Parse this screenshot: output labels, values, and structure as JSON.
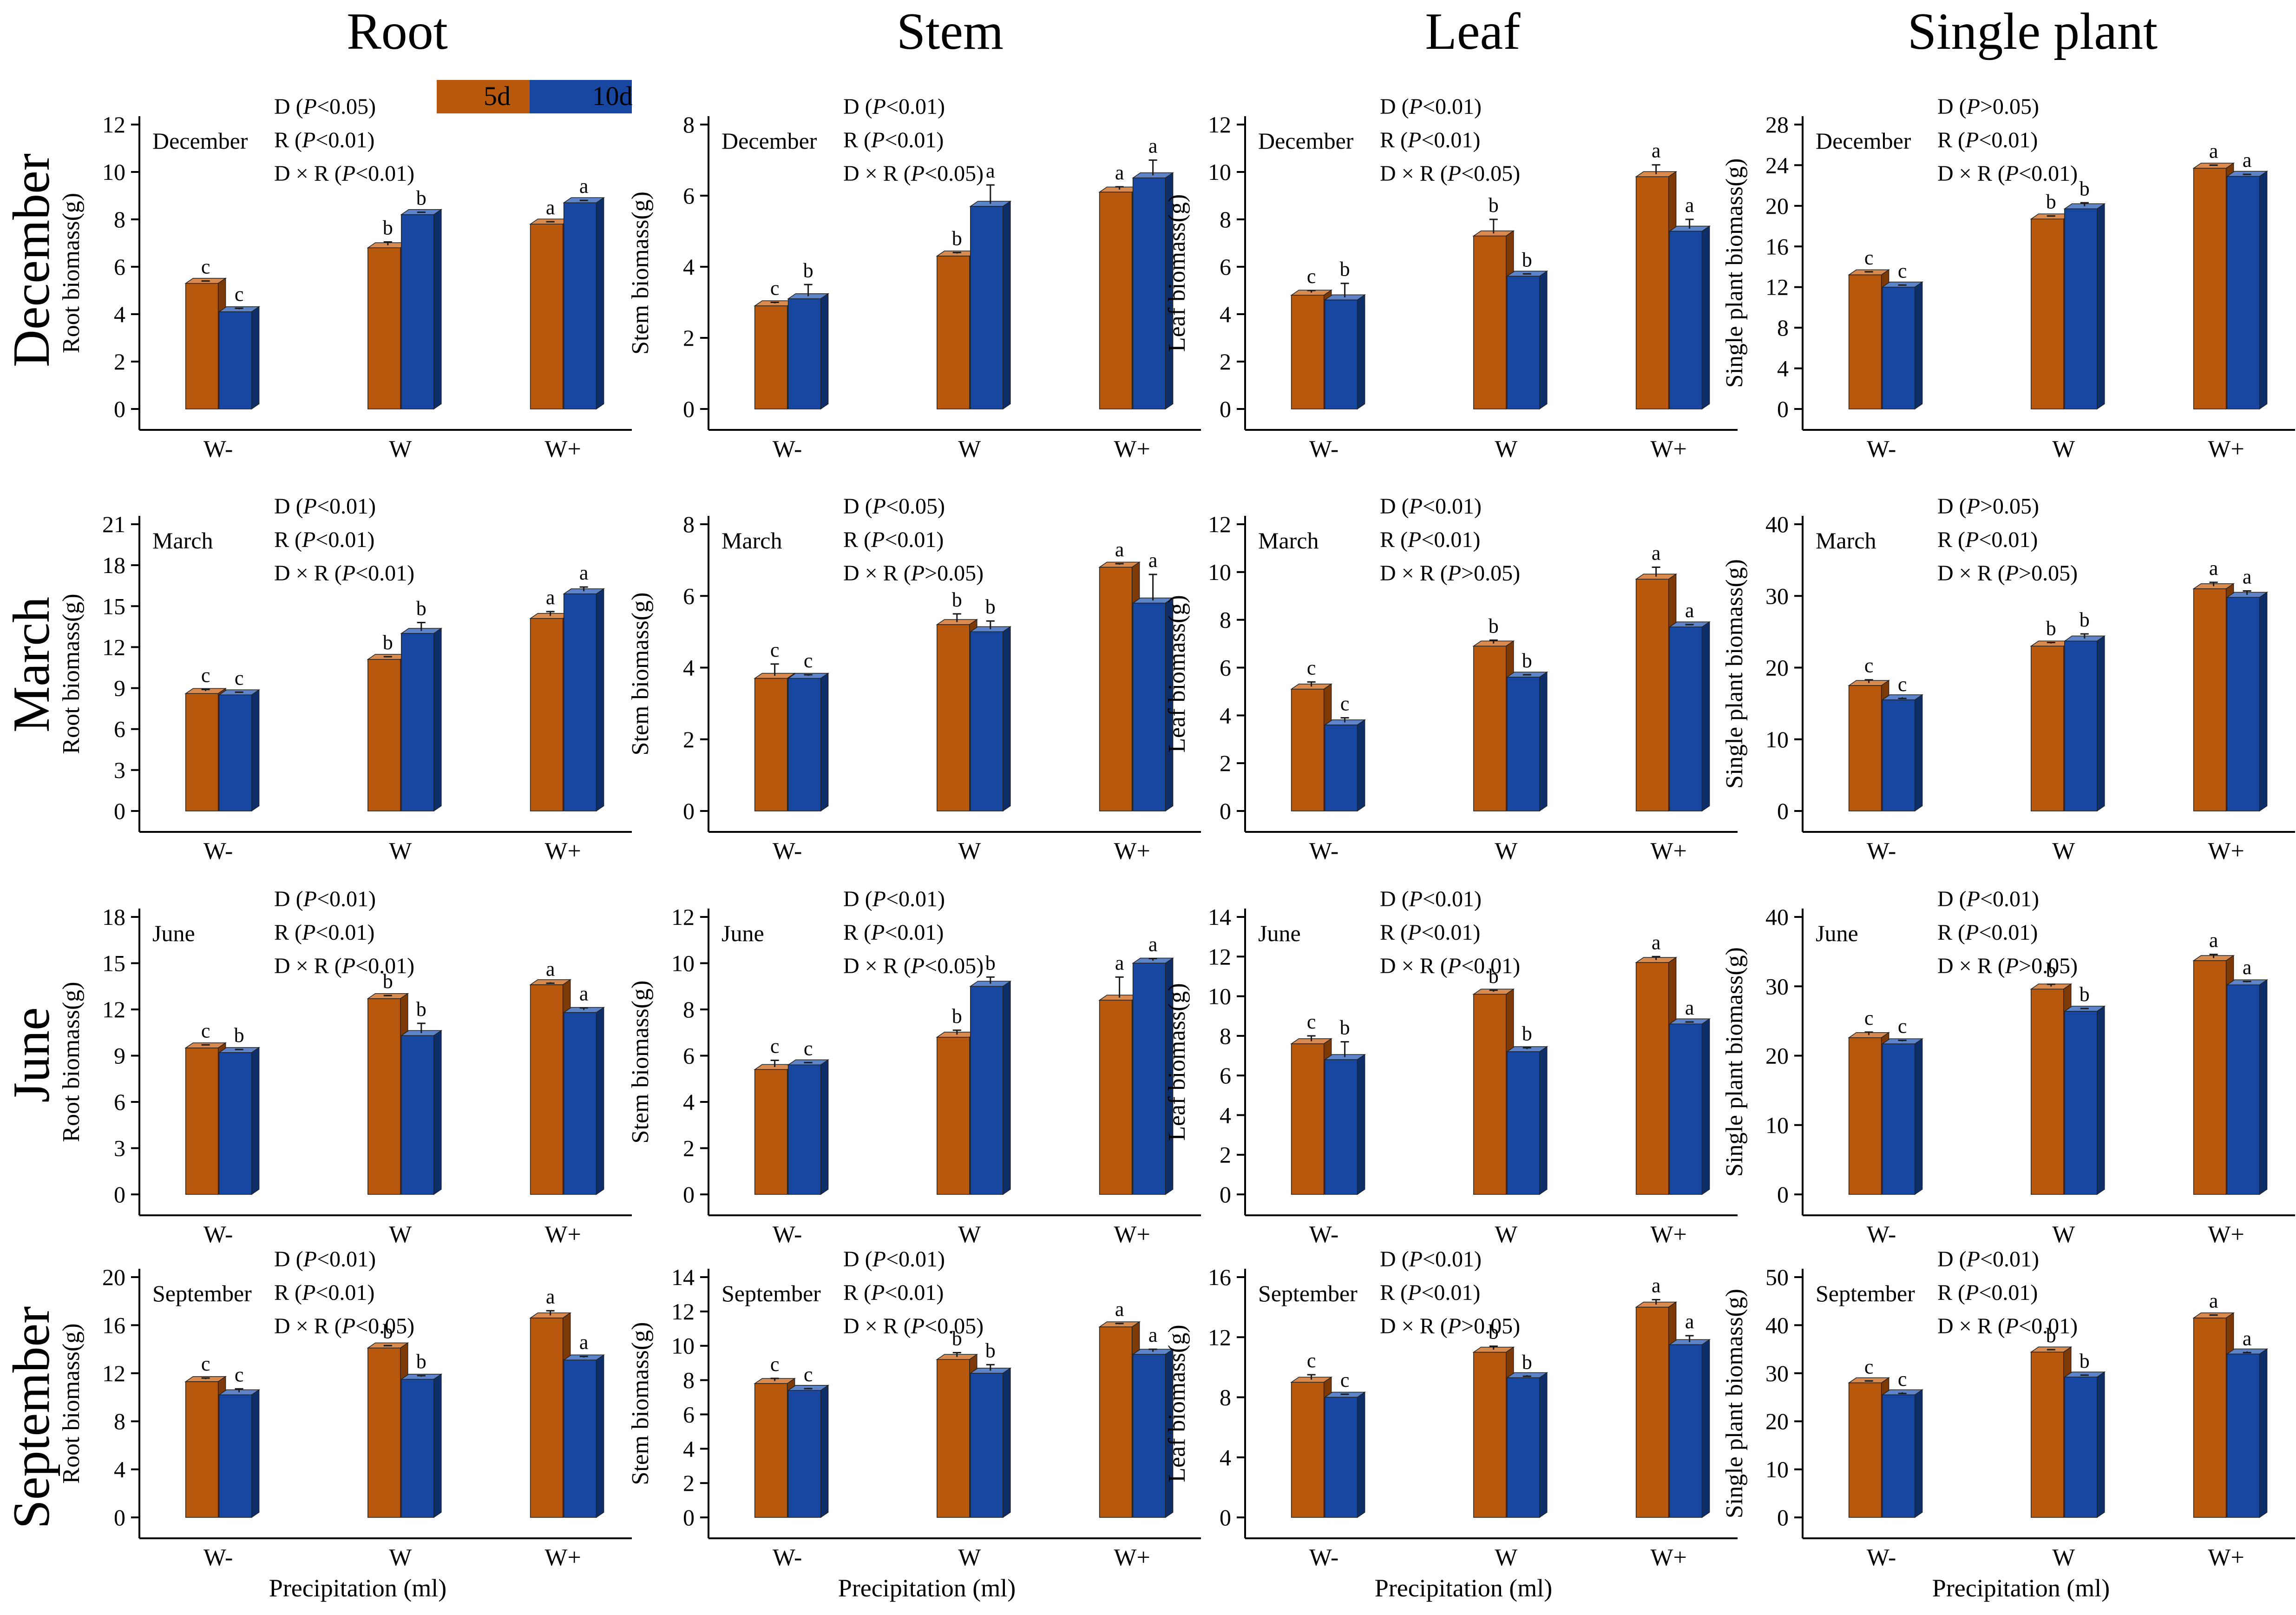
{
  "legend": [
    {
      "label": "5d",
      "color": "#B8580C"
    },
    {
      "label": "10d",
      "color": "#1747A0"
    }
  ],
  "colors": {
    "front5": "#B8580C",
    "top5": "#D98A4E",
    "side5": "#7E3A06",
    "front10": "#1747A0",
    "top10": "#5D84C8",
    "side10": "#0E2E6A",
    "errorbar": "#1a1a1a",
    "axis": "#000000"
  },
  "columns": [
    "Root",
    "Stem",
    "Leaf",
    "Single plant"
  ],
  "rows": [
    "December",
    "March",
    "June",
    "September"
  ],
  "xlabel": "Precipitation (ml)",
  "chart_data": [
    {
      "type": "bar",
      "title": "December",
      "ylabel": "Root biomass(g)",
      "ylim": [
        0,
        12
      ],
      "ticks": [
        0,
        2,
        4,
        6,
        8,
        10,
        12
      ],
      "categories": [
        "W-",
        "W",
        "W+"
      ],
      "series": [
        {
          "name": "5d",
          "values": [
            5.3,
            6.8,
            7.8
          ],
          "errors": [
            0.1,
            0.25,
            0.1
          ],
          "letters": [
            "c",
            "b",
            "a"
          ]
        },
        {
          "name": "10d",
          "values": [
            4.1,
            8.2,
            8.7
          ],
          "errors": [
            0.15,
            0.1,
            0.1
          ],
          "letters": [
            "c",
            "b",
            "a"
          ]
        }
      ],
      "stats": [
        "D (P<0.05)",
        "R (P<0.01)",
        "D × R (P<0.01)"
      ]
    },
    {
      "type": "bar",
      "title": "December",
      "ylabel": "Stem biomass(g)",
      "ylim": [
        0,
        8
      ],
      "ticks": [
        0,
        2,
        4,
        6,
        8
      ],
      "categories": [
        "W-",
        "W",
        "W+"
      ],
      "series": [
        {
          "name": "5d",
          "values": [
            2.9,
            4.3,
            6.1
          ],
          "errors": [
            0.1,
            0.1,
            0.15
          ],
          "letters": [
            "c",
            "b",
            "a"
          ]
        },
        {
          "name": "10d",
          "values": [
            3.1,
            5.7,
            6.5
          ],
          "errors": [
            0.4,
            0.6,
            0.5
          ],
          "letters": [
            "b",
            "a",
            "a"
          ]
        }
      ],
      "stats": [
        "D (P<0.01)",
        "R (P<0.01)",
        "D × R (P<0.05)"
      ]
    },
    {
      "type": "bar",
      "title": "December",
      "ylabel": "Leaf biomass(g)",
      "ylim": [
        0,
        12
      ],
      "ticks": [
        0,
        2,
        4,
        6,
        8,
        10,
        12
      ],
      "categories": [
        "W-",
        "W",
        "W+"
      ],
      "series": [
        {
          "name": "5d",
          "values": [
            4.8,
            7.3,
            9.8
          ],
          "errors": [
            0.2,
            0.7,
            0.5
          ],
          "letters": [
            "c",
            "b",
            "a"
          ]
        },
        {
          "name": "10d",
          "values": [
            4.6,
            5.6,
            7.5
          ],
          "errors": [
            0.7,
            0.1,
            0.5
          ],
          "letters": [
            "b",
            "b",
            "a"
          ]
        }
      ],
      "stats": [
        "D (P<0.01)",
        "R (P<0.01)",
        "D × R (P<0.05)"
      ]
    },
    {
      "type": "bar",
      "title": "December",
      "ylabel": "Single plant biomass(g)",
      "ylim": [
        0,
        28
      ],
      "ticks": [
        0,
        4,
        8,
        12,
        16,
        20,
        24,
        28
      ],
      "categories": [
        "W-",
        "W",
        "W+"
      ],
      "series": [
        {
          "name": "5d",
          "values": [
            13.2,
            18.7,
            23.7
          ],
          "errors": [
            0.3,
            0.3,
            0.3
          ],
          "letters": [
            "c",
            "b",
            "a"
          ]
        },
        {
          "name": "10d",
          "values": [
            12.0,
            19.7,
            22.9
          ],
          "errors": [
            0.2,
            0.6,
            0.2
          ],
          "letters": [
            "c",
            "b",
            "a"
          ]
        }
      ],
      "stats": [
        "D (P>0.05)",
        "R (P<0.01)",
        "D × R (P<0.01)"
      ]
    },
    {
      "type": "bar",
      "title": "March",
      "ylabel": "Root biomass(g)",
      "ylim": [
        0,
        21
      ],
      "ticks": [
        0,
        3,
        6,
        9,
        12,
        15,
        18,
        21
      ],
      "categories": [
        "W-",
        "W",
        "W+"
      ],
      "series": [
        {
          "name": "5d",
          "values": [
            8.6,
            11.1,
            14.1
          ],
          "errors": [
            0.3,
            0.2,
            0.5
          ],
          "letters": [
            "c",
            "b",
            "a"
          ]
        },
        {
          "name": "10d",
          "values": [
            8.5,
            13.0,
            15.9
          ],
          "errors": [
            0.2,
            0.8,
            0.5
          ],
          "letters": [
            "c",
            "b",
            "a"
          ]
        }
      ],
      "stats": [
        "D (P<0.01)",
        "R (P<0.01)",
        "D × R (P<0.01)"
      ]
    },
    {
      "type": "bar",
      "title": "March",
      "ylabel": "Stem biomass(g)",
      "ylim": [
        0,
        8
      ],
      "ticks": [
        0,
        2,
        4,
        6,
        8
      ],
      "categories": [
        "W-",
        "W",
        "W+"
      ],
      "series": [
        {
          "name": "5d",
          "values": [
            3.7,
            5.2,
            6.8
          ],
          "errors": [
            0.4,
            0.3,
            0.1
          ],
          "letters": [
            "c",
            "b",
            "a"
          ]
        },
        {
          "name": "10d",
          "values": [
            3.7,
            5.0,
            5.8
          ],
          "errors": [
            0.1,
            0.3,
            0.8
          ],
          "letters": [
            "c",
            "b",
            "a"
          ]
        }
      ],
      "stats": [
        "D (P<0.05)",
        "R (P<0.01)",
        "D × R (P>0.05)"
      ]
    },
    {
      "type": "bar",
      "title": "March",
      "ylabel": "Leaf biomass(g)",
      "ylim": [
        0,
        12
      ],
      "ticks": [
        0,
        2,
        4,
        6,
        8,
        10,
        12
      ],
      "categories": [
        "W-",
        "W",
        "W+"
      ],
      "series": [
        {
          "name": "5d",
          "values": [
            5.1,
            6.9,
            9.7
          ],
          "errors": [
            0.3,
            0.25,
            0.5
          ],
          "letters": [
            "c",
            "b",
            "a"
          ]
        },
        {
          "name": "10d",
          "values": [
            3.6,
            5.6,
            7.7
          ],
          "errors": [
            0.3,
            0.1,
            0.1
          ],
          "letters": [
            "c",
            "b",
            "a"
          ]
        }
      ],
      "stats": [
        "D (P<0.01)",
        "R (P<0.01)",
        "D × R (P>0.05)"
      ]
    },
    {
      "type": "bar",
      "title": "March",
      "ylabel": "Single plant biomass(g)",
      "ylim": [
        0,
        40
      ],
      "ticks": [
        0,
        10,
        20,
        30,
        40
      ],
      "categories": [
        "W-",
        "W",
        "W+"
      ],
      "series": [
        {
          "name": "5d",
          "values": [
            17.5,
            23.0,
            31.0
          ],
          "errors": [
            0.8,
            0.5,
            0.9
          ],
          "letters": [
            "c",
            "b",
            "a"
          ]
        },
        {
          "name": "10d",
          "values": [
            15.5,
            23.7,
            29.8
          ],
          "errors": [
            0.2,
            1.0,
            0.9
          ],
          "letters": [
            "c",
            "b",
            "a"
          ]
        }
      ],
      "stats": [
        "D (P>0.05)",
        "R (P<0.01)",
        "D × R (P>0.05)"
      ]
    },
    {
      "type": "bar",
      "title": "June",
      "ylabel": "Root biomass(g)",
      "ylim": [
        0,
        18
      ],
      "ticks": [
        0,
        3,
        6,
        9,
        12,
        15,
        18
      ],
      "categories": [
        "W-",
        "W",
        "W+"
      ],
      "series": [
        {
          "name": "5d",
          "values": [
            9.5,
            12.7,
            13.6
          ],
          "errors": [
            0.2,
            0.2,
            0.1
          ],
          "letters": [
            "c",
            "b",
            "a"
          ]
        },
        {
          "name": "10d",
          "values": [
            9.2,
            10.3,
            11.8
          ],
          "errors": [
            0.2,
            0.8,
            0.3
          ],
          "letters": [
            "b",
            "b",
            "a"
          ]
        }
      ],
      "stats": [
        "D (P<0.01)",
        "R (P<0.01)",
        "D × R (P<0.01)"
      ]
    },
    {
      "type": "bar",
      "title": "June",
      "ylabel": "Stem biomass(g)",
      "ylim": [
        0,
        12
      ],
      "ticks": [
        0,
        2,
        4,
        6,
        8,
        10,
        12
      ],
      "categories": [
        "W-",
        "W",
        "W+"
      ],
      "series": [
        {
          "name": "5d",
          "values": [
            5.4,
            6.8,
            8.4
          ],
          "errors": [
            0.4,
            0.3,
            1.0
          ],
          "letters": [
            "c",
            "b",
            "a"
          ]
        },
        {
          "name": "10d",
          "values": [
            5.6,
            9.0,
            10.0
          ],
          "errors": [
            0.1,
            0.4,
            0.2
          ],
          "letters": [
            "c",
            "b",
            "a"
          ]
        }
      ],
      "stats": [
        "D (P<0.01)",
        "R (P<0.01)",
        "D × R (P<0.05)"
      ]
    },
    {
      "type": "bar",
      "title": "June",
      "ylabel": "Leaf biomass(g)",
      "ylim": [
        0,
        14
      ],
      "ticks": [
        0,
        2,
        4,
        6,
        8,
        10,
        12,
        14
      ],
      "categories": [
        "W-",
        "W",
        "W+"
      ],
      "series": [
        {
          "name": "5d",
          "values": [
            7.6,
            10.1,
            11.7
          ],
          "errors": [
            0.4,
            0.2,
            0.3
          ],
          "letters": [
            "c",
            "b",
            "a"
          ]
        },
        {
          "name": "10d",
          "values": [
            6.8,
            7.2,
            8.6
          ],
          "errors": [
            0.9,
            0.2,
            0.1
          ],
          "letters": [
            "b",
            "b",
            "a"
          ]
        }
      ],
      "stats": [
        "D (P<0.01)",
        "R (P<0.01)",
        "D × R (P<0.01)"
      ]
    },
    {
      "type": "bar",
      "title": "June",
      "ylabel": "Single plant biomass(g)",
      "ylim": [
        0,
        40
      ],
      "ticks": [
        0,
        10,
        20,
        30,
        40
      ],
      "categories": [
        "W-",
        "W",
        "W+"
      ],
      "series": [
        {
          "name": "5d",
          "values": [
            22.6,
            29.6,
            33.7
          ],
          "errors": [
            0.8,
            0.7,
            0.9
          ],
          "letters": [
            "c",
            "b",
            "a"
          ]
        },
        {
          "name": "10d",
          "values": [
            21.7,
            26.4,
            30.2
          ],
          "errors": [
            0.5,
            0.4,
            0.5
          ],
          "letters": [
            "c",
            "b",
            "a"
          ]
        }
      ],
      "stats": [
        "D (P<0.01)",
        "R (P<0.01)",
        "D × R (P>0.05)"
      ]
    },
    {
      "type": "bar",
      "title": "September",
      "ylabel": "Root biomass(g)",
      "ylim": [
        0,
        20
      ],
      "ticks": [
        0,
        4,
        8,
        12,
        16,
        20
      ],
      "categories": [
        "W-",
        "W",
        "W+"
      ],
      "series": [
        {
          "name": "5d",
          "values": [
            11.3,
            14.1,
            16.6
          ],
          "errors": [
            0.3,
            0.2,
            0.6
          ],
          "letters": [
            "c",
            "b",
            "a"
          ]
        },
        {
          "name": "10d",
          "values": [
            10.2,
            11.5,
            13.1
          ],
          "errors": [
            0.5,
            0.3,
            0.3
          ],
          "letters": [
            "c",
            "b",
            "a"
          ]
        }
      ],
      "stats": [
        "D (P<0.01)",
        "R (P<0.01)",
        "D × R (P<0.05)"
      ]
    },
    {
      "type": "bar",
      "title": "September",
      "ylabel": "Stem biomass(g)",
      "ylim": [
        0,
        14
      ],
      "ticks": [
        0,
        2,
        4,
        6,
        8,
        10,
        12,
        14
      ],
      "categories": [
        "W-",
        "W",
        "W+"
      ],
      "series": [
        {
          "name": "5d",
          "values": [
            7.8,
            9.2,
            11.1
          ],
          "errors": [
            0.3,
            0.4,
            0.2
          ],
          "letters": [
            "c",
            "b",
            "a"
          ]
        },
        {
          "name": "10d",
          "values": [
            7.4,
            8.4,
            9.5
          ],
          "errors": [
            0.1,
            0.5,
            0.3
          ],
          "letters": [
            "c",
            "b",
            "a"
          ]
        }
      ],
      "stats": [
        "D (P<0.01)",
        "R (P<0.01)",
        "D × R (P<0.05)"
      ]
    },
    {
      "type": "bar",
      "title": "September",
      "ylabel": "Leaf biomass(g)",
      "ylim": [
        0,
        16
      ],
      "ticks": [
        0,
        4,
        8,
        12,
        16
      ],
      "categories": [
        "W-",
        "W",
        "W+"
      ],
      "series": [
        {
          "name": "5d",
          "values": [
            9.0,
            11.0,
            14.0
          ],
          "errors": [
            0.5,
            0.4,
            0.5
          ],
          "letters": [
            "c",
            "b",
            "a"
          ]
        },
        {
          "name": "10d",
          "values": [
            8.0,
            9.3,
            11.5
          ],
          "errors": [
            0.2,
            0.1,
            0.6
          ],
          "letters": [
            "c",
            "b",
            "a"
          ]
        }
      ],
      "stats": [
        "D (P<0.01)",
        "R (P<0.01)",
        "D × R (P>0.05)"
      ]
    },
    {
      "type": "bar",
      "title": "September",
      "ylabel": "Single plant biomass(g)",
      "ylim": [
        0,
        50
      ],
      "ticks": [
        0,
        10,
        20,
        30,
        40,
        50
      ],
      "categories": [
        "W-",
        "W",
        "W+"
      ],
      "series": [
        {
          "name": "5d",
          "values": [
            28.0,
            34.4,
            41.5
          ],
          "errors": [
            0.4,
            0.5,
            0.6
          ],
          "letters": [
            "c",
            "b",
            "a"
          ]
        },
        {
          "name": "10d",
          "values": [
            25.5,
            29.2,
            34.0
          ],
          "errors": [
            0.3,
            0.4,
            0.3
          ],
          "letters": [
            "c",
            "b",
            "a"
          ]
        }
      ],
      "stats": [
        "D (P<0.01)",
        "R (P<0.01)",
        "D × R (P<0.01)"
      ]
    }
  ]
}
